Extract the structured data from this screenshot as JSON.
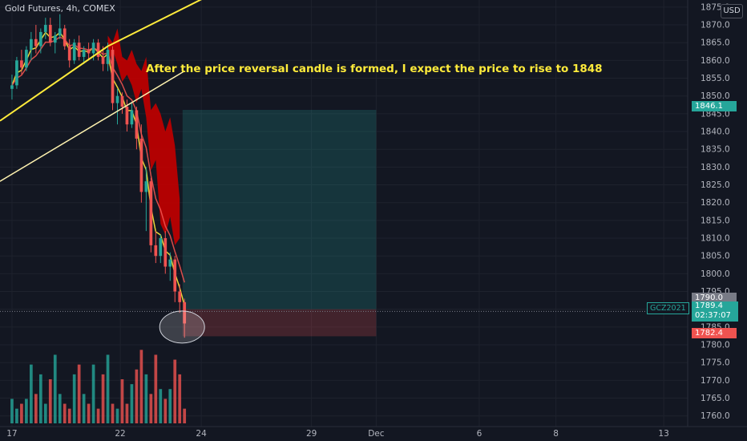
{
  "header": {
    "title": "Gold Futures, 4h, COMEX",
    "currency": "USD"
  },
  "annotation": {
    "text": "After the price reversal candle is formed, I expect the price to rise to 1848"
  },
  "price_tags": {
    "target": "1846.1",
    "entry": "1790.0",
    "last": "1789.4",
    "countdown": "02:37:07",
    "stop": "1782.4",
    "symbol": "GCZ2021"
  },
  "colors": {
    "up": "#26a69a",
    "down": "#ef5350",
    "trend": "#ffeb3b",
    "cloud": "#c00000"
  },
  "chart_data": {
    "type": "candlestick",
    "title": "Gold Futures, 4h, COMEX",
    "y_axis_ticks": [
      "1875.0",
      "1870.0",
      "1865.0",
      "1860.0",
      "1855.0",
      "1850.0",
      "1845.0",
      "1840.0",
      "1835.0",
      "1830.0",
      "1825.0",
      "1820.0",
      "1815.0",
      "1810.0",
      "1805.0",
      "1800.0",
      "1795.0",
      "1790.0",
      "1785.0",
      "1780.0",
      "1775.0",
      "1770.0",
      "1765.0",
      "1760.0"
    ],
    "ylim": [
      1757,
      1877
    ],
    "x_axis_ticks": [
      "17",
      "22",
      "24",
      "29",
      "Dec",
      "6",
      "8",
      "13"
    ],
    "x_tick_index": [
      0,
      22.6,
      39.5,
      62.5,
      76,
      97.5,
      113.5,
      136
    ],
    "xlim": [
      -2.5,
      141
    ],
    "candles": [
      [
        1852,
        1856,
        1849,
        1853
      ],
      [
        1853,
        1861,
        1852,
        1860
      ],
      [
        1860,
        1863,
        1856,
        1858
      ],
      [
        1858,
        1864,
        1857,
        1863
      ],
      [
        1863,
        1868,
        1860,
        1866
      ],
      [
        1866,
        1870,
        1862,
        1864
      ],
      [
        1864,
        1869,
        1862,
        1868
      ],
      [
        1868,
        1872,
        1866,
        1870
      ],
      [
        1870,
        1872,
        1864,
        1865
      ],
      [
        1865,
        1868,
        1862,
        1867
      ],
      [
        1867,
        1873,
        1866,
        1869
      ],
      [
        1869,
        1870,
        1863,
        1864
      ],
      [
        1864,
        1866,
        1858,
        1860
      ],
      [
        1860,
        1866,
        1859,
        1865
      ],
      [
        1865,
        1867,
        1860,
        1861
      ],
      [
        1861,
        1864,
        1859,
        1863
      ],
      [
        1863,
        1865,
        1860,
        1862
      ],
      [
        1862,
        1866,
        1860,
        1865
      ],
      [
        1865,
        1866,
        1860,
        1861
      ],
      [
        1861,
        1864,
        1857,
        1859
      ],
      [
        1859,
        1865,
        1857,
        1863
      ],
      [
        1863,
        1864,
        1846,
        1848
      ],
      [
        1848,
        1852,
        1842,
        1850
      ],
      [
        1850,
        1851,
        1845,
        1847
      ],
      [
        1847,
        1849,
        1840,
        1842
      ],
      [
        1842,
        1848,
        1841,
        1846
      ],
      [
        1846,
        1847,
        1835,
        1838
      ],
      [
        1838,
        1842,
        1820,
        1823
      ],
      [
        1823,
        1830,
        1812,
        1826
      ],
      [
        1826,
        1827,
        1806,
        1808
      ],
      [
        1808,
        1812,
        1803,
        1805
      ],
      [
        1805,
        1811,
        1803,
        1810
      ],
      [
        1810,
        1812,
        1800,
        1802
      ],
      [
        1802,
        1806,
        1798,
        1804
      ],
      [
        1804,
        1805,
        1792,
        1795
      ],
      [
        1795,
        1797,
        1789,
        1792
      ],
      [
        1792,
        1793,
        1782,
        1786
      ]
    ],
    "volume": [
      5,
      3,
      4,
      5,
      12,
      6,
      10,
      4,
      9,
      14,
      6,
      4,
      3,
      10,
      12,
      6,
      4,
      12,
      3,
      10,
      14,
      4,
      3,
      9,
      4,
      8,
      11,
      15,
      10,
      6,
      14,
      7,
      5,
      7,
      13,
      10,
      3
    ],
    "volume_max": 18,
    "position": {
      "entry": 1790,
      "target": 1846.1,
      "stop": 1782.4,
      "x_start": 35.6,
      "x_end": 76
    }
  }
}
